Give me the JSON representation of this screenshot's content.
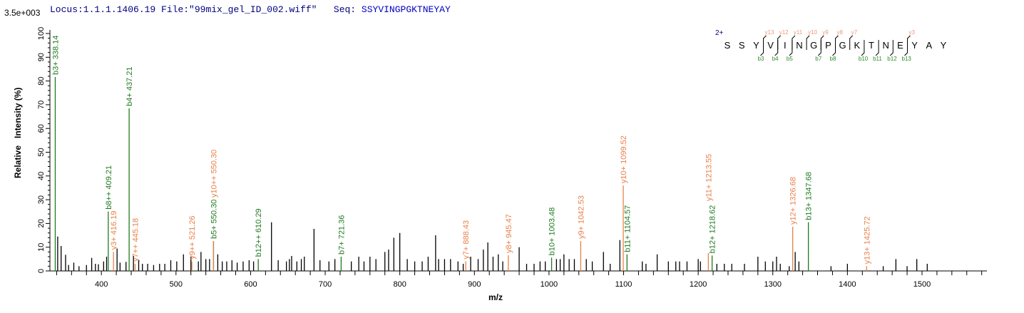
{
  "header": {
    "locus": "Locus:1.1.1.1406.19",
    "file": "File:\"99mix_gel_ID_002.wiff\"",
    "seq_label": "Seq:",
    "sequence": "SSYVINGPGKTNEYAY"
  },
  "colors": {
    "b_ion": "#1f7a1f",
    "y_ion": "#e8804a",
    "unassigned": "#000000",
    "header": "#000080"
  },
  "chart_data": {
    "type": "bar",
    "scale_label": "3.5e+003",
    "xlabel": "m/z",
    "ylabel": "Relative   Intensity (%)",
    "xlim": [
      331,
      1587
    ],
    "ylim": [
      0,
      100
    ],
    "x_ticks": [
      400,
      500,
      600,
      700,
      800,
      900,
      1000,
      1100,
      1200,
      1300,
      1400,
      1500
    ],
    "y_ticks": [
      0,
      10,
      20,
      30,
      40,
      50,
      60,
      70,
      80,
      90,
      100
    ],
    "annotated_peaks": [
      {
        "label": "b3+ 338.14",
        "mz": 338.14,
        "intensity": 81.7,
        "ion": "b"
      },
      {
        "label": "b8++ 409.21",
        "mz": 409.21,
        "intensity": 25,
        "ion": "b"
      },
      {
        "label": "y3+ 416.19",
        "mz": 416.19,
        "intensity": 8,
        "ion": "y"
      },
      {
        "label": "b4+ 437.21",
        "mz": 437.21,
        "intensity": 68.5,
        "ion": "b"
      },
      {
        "label": "y7++ 445.18",
        "mz": 445.18,
        "intensity": 3,
        "ion": "y"
      },
      {
        "label": "y9++ 521.26",
        "mz": 521.26,
        "intensity": 4,
        "ion": "y"
      },
      {
        "label": "b5+ 550.30",
        "mz": 550.3,
        "intensity": 12.6,
        "ion": "b"
      },
      {
        "label": "y10++ 550.30",
        "mz": 550.3,
        "intensity": 12.6,
        "ion": "y"
      },
      {
        "label": "b12++ 610.29",
        "mz": 610.29,
        "intensity": 5,
        "ion": "b"
      },
      {
        "label": "b7+ 721.36",
        "mz": 721.36,
        "intensity": 6,
        "ion": "b"
      },
      {
        "label": "y7+ 888.43",
        "mz": 888.43,
        "intensity": 4,
        "ion": "y"
      },
      {
        "label": "y8+ 945.47",
        "mz": 945.47,
        "intensity": 6.6,
        "ion": "y"
      },
      {
        "label": "b10+ 1003.48",
        "mz": 1003.48,
        "intensity": 5.6,
        "ion": "b"
      },
      {
        "label": "y9+ 1042.53",
        "mz": 1042.53,
        "intensity": 12.6,
        "ion": "y"
      },
      {
        "label": "y10+ 1099.52",
        "mz": 1099.52,
        "intensity": 36,
        "ion": "y"
      },
      {
        "label": "b11+ 1104.57",
        "mz": 1104.57,
        "intensity": 7,
        "ion": "b"
      },
      {
        "label": "y11+ 1213.55",
        "mz": 1213.55,
        "intensity": 7.5,
        "ion": "y"
      },
      {
        "label": "b12+ 1218.62",
        "mz": 1218.62,
        "intensity": 6.5,
        "ion": "b"
      },
      {
        "label": "y12+ 1326.68",
        "mz": 1326.68,
        "intensity": 18.6,
        "ion": "y"
      },
      {
        "label": "b13+ 1347.68",
        "mz": 1347.68,
        "intensity": 20.5,
        "ion": "b"
      },
      {
        "label": "y13+ 1425.72",
        "mz": 1425.72,
        "intensity": 2,
        "ion": "y"
      }
    ],
    "peaks": [
      [
        341.4,
        14.5
      ],
      [
        346,
        10.5
      ],
      [
        352,
        6.8
      ],
      [
        356,
        2.5
      ],
      [
        363,
        3.5
      ],
      [
        370,
        2
      ],
      [
        380,
        2.5
      ],
      [
        387,
        5.5
      ],
      [
        392,
        3
      ],
      [
        396,
        2.8
      ],
      [
        403,
        4
      ],
      [
        407,
        6
      ],
      [
        421,
        9.3
      ],
      [
        425,
        3.5
      ],
      [
        433,
        3.8
      ],
      [
        443,
        6.3
      ],
      [
        450,
        4.5
      ],
      [
        455,
        3
      ],
      [
        462,
        3
      ],
      [
        470,
        2.5
      ],
      [
        478,
        3
      ],
      [
        485,
        3
      ],
      [
        493,
        4.5
      ],
      [
        501,
        4
      ],
      [
        510,
        7
      ],
      [
        520,
        6
      ],
      [
        530,
        4
      ],
      [
        533.5,
        8
      ],
      [
        540,
        5
      ],
      [
        545,
        5
      ],
      [
        556,
        7
      ],
      [
        562,
        4
      ],
      [
        568,
        4
      ],
      [
        575,
        4.5
      ],
      [
        582,
        3.5
      ],
      [
        590,
        4
      ],
      [
        598,
        4.5
      ],
      [
        604,
        4
      ],
      [
        628,
        20.5
      ],
      [
        637,
        4.5
      ],
      [
        648,
        4
      ],
      [
        652,
        5
      ],
      [
        655,
        6.3
      ],
      [
        662,
        4
      ],
      [
        668,
        5
      ],
      [
        672,
        6
      ],
      [
        685,
        17.7
      ],
      [
        693,
        4.5
      ],
      [
        705,
        4
      ],
      [
        713,
        5
      ],
      [
        735,
        4
      ],
      [
        745,
        6
      ],
      [
        752,
        4
      ],
      [
        760,
        6
      ],
      [
        768,
        5
      ],
      [
        780,
        8
      ],
      [
        785,
        9
      ],
      [
        792,
        14
      ],
      [
        800,
        16
      ],
      [
        810,
        5
      ],
      [
        820,
        4
      ],
      [
        830,
        4
      ],
      [
        838,
        6
      ],
      [
        848,
        15
      ],
      [
        852,
        5
      ],
      [
        860,
        5
      ],
      [
        868,
        5
      ],
      [
        878,
        4
      ],
      [
        885,
        3
      ],
      [
        895,
        6
      ],
      [
        905,
        5
      ],
      [
        912,
        9
      ],
      [
        918,
        12
      ],
      [
        925,
        6
      ],
      [
        932,
        7
      ],
      [
        938,
        4
      ],
      [
        960,
        10
      ],
      [
        970,
        3
      ],
      [
        980,
        3
      ],
      [
        988,
        4
      ],
      [
        995,
        4
      ],
      [
        1010,
        5
      ],
      [
        1015,
        5
      ],
      [
        1020,
        7
      ],
      [
        1027,
        5
      ],
      [
        1034,
        5
      ],
      [
        1050,
        5
      ],
      [
        1058,
        4
      ],
      [
        1073,
        8
      ],
      [
        1082,
        3
      ],
      [
        1095,
        13
      ],
      [
        1125,
        4
      ],
      [
        1130,
        3
      ],
      [
        1145,
        7
      ],
      [
        1160,
        4
      ],
      [
        1170,
        4
      ],
      [
        1175,
        4
      ],
      [
        1185,
        4
      ],
      [
        1200,
        5
      ],
      [
        1203,
        4
      ],
      [
        1225,
        3
      ],
      [
        1235,
        3
      ],
      [
        1245,
        3
      ],
      [
        1262,
        3
      ],
      [
        1280,
        6
      ],
      [
        1290,
        4
      ],
      [
        1300,
        4
      ],
      [
        1305,
        6
      ],
      [
        1310,
        3
      ],
      [
        1322,
        2
      ],
      [
        1330,
        8
      ],
      [
        1335,
        4
      ],
      [
        1378,
        2
      ],
      [
        1400,
        3
      ],
      [
        1448,
        2
      ],
      [
        1465,
        5
      ],
      [
        1480,
        2
      ],
      [
        1493,
        5
      ],
      [
        1507,
        3
      ]
    ],
    "grid": false,
    "sequence_map": {
      "charge": "2+",
      "residues": [
        "S",
        "S",
        "Y",
        "V",
        "I",
        "N",
        "G",
        "P",
        "G",
        "K",
        "T",
        "N",
        "E",
        "Y",
        "A",
        "Y"
      ],
      "y_ions": [
        {
          "label": "y13",
          "after": 3
        },
        {
          "label": "y12",
          "after": 4
        },
        {
          "label": "y11",
          "after": 5
        },
        {
          "label": "y10",
          "after": 6
        },
        {
          "label": "y9",
          "after": 7
        },
        {
          "label": "y8",
          "after": 8
        },
        {
          "label": "y7",
          "after": 9
        },
        {
          "label": "y3",
          "after": 13
        }
      ],
      "b_ions": [
        {
          "label": "b3",
          "after": 3
        },
        {
          "label": "b4",
          "after": 4
        },
        {
          "label": "b5",
          "after": 5
        },
        {
          "label": "b7",
          "after": 7
        },
        {
          "label": "b8",
          "after": 8
        },
        {
          "label": "b10",
          "after": 10
        },
        {
          "label": "b11",
          "after": 11
        },
        {
          "label": "b12",
          "after": 12
        },
        {
          "label": "b13",
          "after": 13
        }
      ]
    }
  }
}
